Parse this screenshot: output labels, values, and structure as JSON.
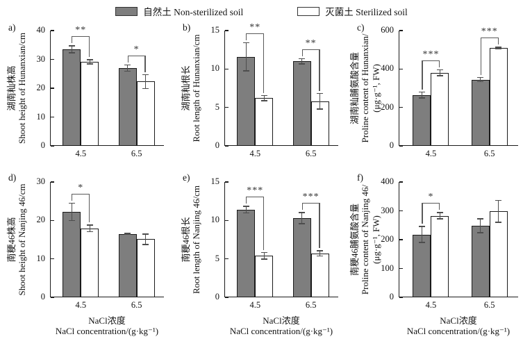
{
  "legend": {
    "items": [
      {
        "label": "自然土 Non-sterilized soil",
        "fill": "#7e7e7e"
      },
      {
        "label": "灭菌土 Sterilized soil",
        "fill": "#ffffff"
      }
    ]
  },
  "colors": {
    "bar_non_sterilized": "#7e7e7e",
    "bar_sterilized": "#ffffff",
    "bar_border": "#1a1a1a",
    "axis": "#1a1a1a",
    "error_bar": "#4d4d4d",
    "sig_bracket": "#595959",
    "background": "#ffffff"
  },
  "chart_data": [
    {
      "type": "bar",
      "id": "a",
      "panel_label": "a)",
      "ylabel_lines": [
        "湖南籼株高",
        "Shoot height of Hunanxian/cm"
      ],
      "ylim": [
        0,
        40
      ],
      "yticks": [
        0,
        10,
        20,
        30,
        40
      ],
      "categories": [
        "4.5",
        "6.5"
      ],
      "series": [
        {
          "name": "自然土 Non-sterilized soil",
          "values": [
            33.5,
            27.0
          ],
          "errors": [
            1.4,
            1.3
          ]
        },
        {
          "name": "灭菌土 Sterilized soil",
          "values": [
            29.2,
            22.3
          ],
          "errors": [
            0.9,
            2.6
          ]
        }
      ],
      "significance": [
        "**",
        "*"
      ],
      "xtitle_lines": null
    },
    {
      "type": "bar",
      "id": "b",
      "panel_label": "b)",
      "ylabel_lines": [
        "湖南籼根长",
        "Root length of Hunanxian/cm"
      ],
      "ylim": [
        0,
        15
      ],
      "yticks": [
        0,
        5,
        10,
        15
      ],
      "categories": [
        "4.5",
        "6.5"
      ],
      "series": [
        {
          "name": "自然土 Non-sterilized soil",
          "values": [
            11.6,
            11.0
          ],
          "errors": [
            1.9,
            0.4
          ]
        },
        {
          "name": "灭菌土 Sterilized soil",
          "values": [
            6.2,
            5.8
          ],
          "errors": [
            0.4,
            1.1
          ]
        }
      ],
      "significance": [
        "**",
        "**"
      ],
      "xtitle_lines": null
    },
    {
      "type": "bar",
      "id": "c",
      "panel_label": "c)",
      "ylabel_lines": [
        "湖南籼脯氨酸含量",
        "Proline content of Hunanxian/",
        "(μg·g⁻¹, FW)"
      ],
      "ylim": [
        0,
        600
      ],
      "yticks": [
        0,
        200,
        400,
        600
      ],
      "categories": [
        "4.5",
        "6.5"
      ],
      "series": [
        {
          "name": "自然土 Non-sterilized soil",
          "values": [
            265,
            345
          ],
          "errors": [
            18,
            13
          ]
        },
        {
          "name": "灭菌土 Sterilized soil",
          "values": [
            380,
            510
          ],
          "errors": [
            18,
            6
          ]
        }
      ],
      "significance": [
        "***",
        "***"
      ],
      "xtitle_lines": null
    },
    {
      "type": "bar",
      "id": "d",
      "panel_label": "d)",
      "ylabel_lines": [
        "南粳46株高",
        "Shoot height of Nanjing 46/cm"
      ],
      "ylim": [
        0,
        30
      ],
      "yticks": [
        0,
        10,
        20,
        30
      ],
      "categories": [
        "4.5",
        "6.5"
      ],
      "series": [
        {
          "name": "自然土 Non-sterilized soil",
          "values": [
            22.2,
            16.5
          ],
          "errors": [
            2.4,
            0.3
          ]
        },
        {
          "name": "灭菌土 Sterilized soil",
          "values": [
            17.9,
            15.1
          ],
          "errors": [
            1.0,
            1.5
          ]
        }
      ],
      "significance": [
        "*",
        null
      ],
      "xtitle_lines": [
        "NaCl浓度",
        "NaCl concentration/(g·kg⁻¹)"
      ]
    },
    {
      "type": "bar",
      "id": "e",
      "panel_label": "e)",
      "ylabel_lines": [
        "南粳46根长",
        "Root length of Nanjing 46/cm"
      ],
      "ylim": [
        0,
        15
      ],
      "yticks": [
        0,
        5,
        10,
        15
      ],
      "categories": [
        "4.5",
        "6.5"
      ],
      "series": [
        {
          "name": "自然土 Non-sterilized soil",
          "values": [
            11.4,
            10.3
          ],
          "errors": [
            0.5,
            0.8
          ]
        },
        {
          "name": "灭菌土 Sterilized soil",
          "values": [
            5.4,
            5.7
          ],
          "errors": [
            0.5,
            0.4
          ]
        }
      ],
      "significance": [
        "***",
        "***"
      ],
      "xtitle_lines": [
        "NaCl浓度",
        "NaCl concentration/(g·kg⁻¹)"
      ]
    },
    {
      "type": "bar",
      "id": "f",
      "panel_label": "f)",
      "ylabel_lines": [
        "南粳46脯氨酸含量",
        "Proline content of Nanjing 46/",
        "(μg·g⁻¹, FW)"
      ],
      "ylim": [
        0,
        400
      ],
      "yticks": [
        0,
        100,
        200,
        300,
        400
      ],
      "categories": [
        "4.5",
        "6.5"
      ],
      "series": [
        {
          "name": "自然土 Non-sterilized soil",
          "values": [
            218,
            248
          ],
          "errors": [
            30,
            26
          ]
        },
        {
          "name": "灭菌土 Sterilized soil",
          "values": [
            283,
            298
          ],
          "errors": [
            13,
            40
          ]
        }
      ],
      "significance": [
        "*",
        null
      ],
      "xtitle_lines": [
        "NaCl浓度",
        "NaCl concentration/(g·kg⁻¹)"
      ]
    }
  ]
}
